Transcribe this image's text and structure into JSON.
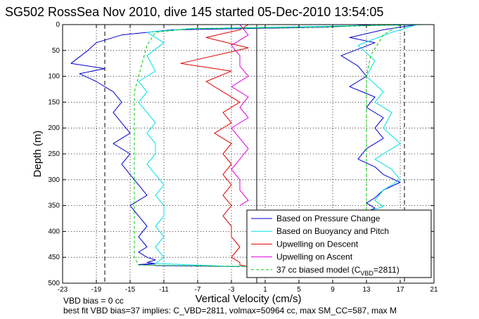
{
  "chart_data": {
    "type": "line",
    "title": "SG502 RossSea Nov 2010, dive 145 started 05-Dec-2010 13:54:05",
    "xlabel": "Vertical Velocity (cm/s)",
    "ylabel": "Depth (m)",
    "xlim": [
      -23,
      21
    ],
    "ylim": [
      500,
      0
    ],
    "y_reversed": true,
    "xticks": [
      "-23",
      "-19",
      "-15",
      "-11",
      "-7",
      "-3",
      "1",
      "5",
      "9",
      "13",
      "17",
      "21"
    ],
    "yticks": [
      "0",
      "50",
      "100",
      "150",
      "200",
      "250",
      "300",
      "350",
      "400",
      "450",
      "500"
    ],
    "grid": true,
    "legend_position": "bottom-right",
    "legend": [
      {
        "label": "Based on Pressure Change",
        "color": "#0000cc",
        "style": "solid"
      },
      {
        "label": "Based on Buoyancy and Pitch",
        "color": "#00e0e0",
        "style": "solid"
      },
      {
        "label": "Upwelling on Descent",
        "color": "#e00000",
        "style": "solid"
      },
      {
        "label": "Upwelling on Ascent",
        "color": "#e000e0",
        "style": "solid"
      },
      {
        "label_prefix": "37 cc biased model (C",
        "label_sub": "VBD",
        "label_suffix": "=2811)",
        "color": "#00cc00",
        "style": "dashed"
      }
    ],
    "reference_lines": [
      {
        "x": -18,
        "style": "dashed",
        "color": "#000000"
      },
      {
        "x": 17.5,
        "style": "dashed",
        "color": "#000000"
      },
      {
        "x": 0,
        "style": "solid",
        "color": "#000000"
      }
    ],
    "series": [
      {
        "name": "Based on Pressure Change",
        "color": "#0000cc",
        "segments": [
          {
            "x": [
              14,
              8,
              -10,
              -16,
              -19,
              -20,
              -22,
              -18,
              -21,
              -19,
              -17,
              -16,
              -17,
              -16,
              -15,
              -17,
              -15,
              -16,
              -15,
              -14,
              -13,
              -15,
              -14,
              -13,
              -14,
              -13,
              -14,
              -13,
              -12,
              -13,
              -12,
              -14,
              -12,
              -12,
              -6,
              -2
            ],
            "y": [
              0,
              5,
              10,
              20,
              35,
              50,
              75,
              85,
              95,
              110,
              130,
              150,
              170,
              190,
              210,
              230,
              250,
              270,
              290,
              310,
              330,
              350,
              370,
              390,
              410,
              430,
              440,
              450,
              455,
              460,
              462,
              464,
              465,
              466,
              467,
              468
            ]
          },
          {
            "x": [
              19,
              15,
              11,
              14,
              10,
              12,
              13,
              11,
              14,
              13,
              15,
              14,
              15,
              13,
              12,
              14,
              15,
              17,
              15,
              14,
              13,
              14,
              13
            ],
            "y": [
              0,
              10,
              25,
              35,
              60,
              80,
              100,
              120,
              140,
              160,
              180,
              200,
              220,
              240,
              260,
              275,
              290,
              305,
              320,
              335,
              345,
              355,
              362
            ]
          }
        ]
      },
      {
        "name": "Based on Buoyancy and Pitch",
        "color": "#00e0e0",
        "segments": [
          {
            "x": [
              20,
              5,
              -8,
              -13,
              -11,
              -13,
              -12,
              -14,
              -13,
              -14,
              -13,
              -12,
              -13,
              -12,
              -12,
              -13,
              -12,
              -11,
              -12,
              -11,
              -11,
              -12,
              -11,
              -12,
              -11,
              -12,
              -4,
              0
            ],
            "y": [
              0,
              4,
              8,
              15,
              35,
              60,
              90,
              110,
              130,
              150,
              170,
              190,
              210,
              230,
              250,
              270,
              290,
              310,
              330,
              350,
              370,
              390,
              410,
              430,
              450,
              462,
              467,
              468
            ]
          },
          {
            "x": [
              19,
              16,
              12,
              14,
              13,
              15,
              14,
              16,
              15,
              17,
              14,
              16,
              17,
              15,
              14,
              15,
              13
            ],
            "y": [
              0,
              15,
              40,
              70,
              100,
              130,
              150,
              170,
              200,
              230,
              260,
              280,
              300,
              320,
              340,
              352,
              362
            ]
          }
        ]
      },
      {
        "name": "Upwelling on Descent",
        "color": "#e00000",
        "segments": [
          {
            "x": [
              -1,
              -2,
              -6,
              -1,
              -9,
              -3,
              -6,
              -4,
              -2,
              -4,
              -3,
              -5,
              -3,
              -4,
              -3,
              -4,
              -3,
              -4,
              -3,
              -4,
              -3,
              -3,
              -2,
              -3,
              -2,
              -2,
              -1
            ],
            "y": [
              0,
              10,
              25,
              45,
              75,
              90,
              110,
              130,
              150,
              170,
              190,
              210,
              230,
              250,
              270,
              290,
              310,
              330,
              350,
              370,
              390,
              410,
              430,
              450,
              460,
              465,
              468
            ]
          }
        ]
      },
      {
        "name": "Upwelling on Ascent",
        "color": "#e000e0",
        "segments": [
          {
            "x": [
              -2,
              -1,
              -3,
              -2,
              -2,
              -1,
              -3,
              -1,
              -2,
              -1,
              -3,
              -2,
              -1,
              -2,
              -3,
              -2,
              -2,
              -1,
              -2
            ],
            "y": [
              0,
              20,
              40,
              60,
              80,
              100,
              120,
              140,
              160,
              180,
              200,
              220,
              240,
              260,
              280,
              300,
              320,
              340,
              350
            ]
          }
        ]
      },
      {
        "name": "37 cc biased model (CVBD=2811)",
        "color": "#00cc00",
        "dashed": true,
        "segments": [
          {
            "x": [
              17,
              8,
              -8,
              -12,
              -13,
              -13.5,
              -14,
              -14.5,
              -14.5,
              -14.5,
              -14.5,
              -14.5,
              -14.5,
              -14.5,
              -14.5,
              -14,
              -5,
              1
            ],
            "y": [
              0,
              5,
              8,
              15,
              40,
              70,
              100,
              130,
              160,
              200,
              250,
              300,
              350,
              400,
              450,
              465,
              467,
              468
            ]
          },
          {
            "x": [
              17,
              15,
              13.5,
              13,
              13,
              13,
              13,
              13,
              13,
              13,
              13
            ],
            "y": [
              0,
              20,
              60,
              100,
              150,
              200,
              250,
              300,
              330,
              350,
              362
            ]
          }
        ]
      }
    ]
  },
  "footer": {
    "line1": "VBD bias = 0 cc",
    "line2": "best fit VBD bias=37 implies: C_VBD=2811, volmax=50964 cc, max SM_CC=587, max M"
  }
}
